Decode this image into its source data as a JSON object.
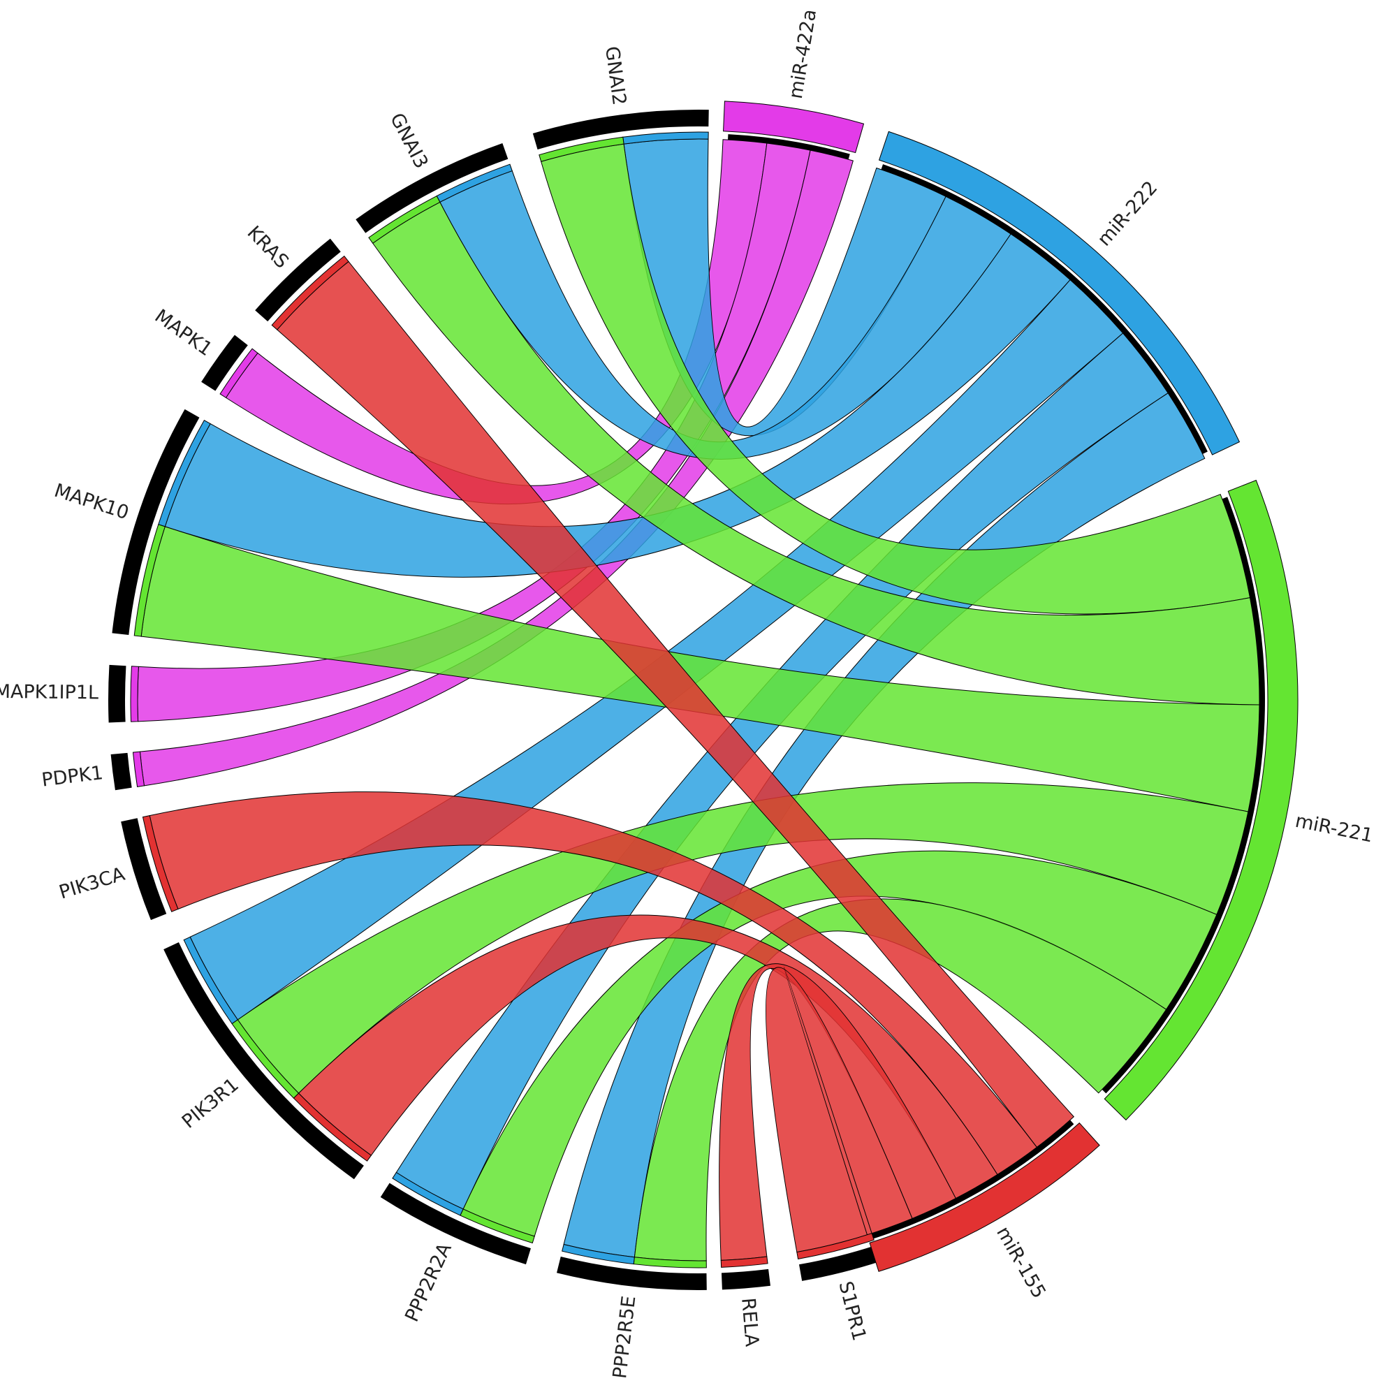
{
  "mirnas": [
    {
      "id": "miR-422a",
      "label": "miR-422a",
      "color": "#e33be8"
    },
    {
      "id": "miR-222",
      "label": "miR-222",
      "color": "#2ea2e2"
    },
    {
      "id": "miR-221",
      "label": "miR-221",
      "color": "#64e532"
    },
    {
      "id": "miR-155",
      "label": "miR-155",
      "color": "#e23232"
    }
  ],
  "genes": [
    {
      "id": "GNAI2",
      "label": "GNAI2"
    },
    {
      "id": "GNAI3",
      "label": "GNAI3"
    },
    {
      "id": "KRAS",
      "label": "KRAS"
    },
    {
      "id": "MAPK1",
      "label": "MAPK1"
    },
    {
      "id": "MAPK10",
      "label": "MAPK10"
    },
    {
      "id": "MAPK1IP1L",
      "label": "MAPK1IP1L"
    },
    {
      "id": "PDPK1",
      "label": "PDPK1"
    },
    {
      "id": "PIK3CA",
      "label": "PIK3CA"
    },
    {
      "id": "PIK3R1",
      "label": "PIK3R1"
    },
    {
      "id": "PPP2R2A",
      "label": "PPP2R2A"
    },
    {
      "id": "PPP2R5E",
      "label": "PPP2R5E"
    },
    {
      "id": "RELA",
      "label": "RELA"
    },
    {
      "id": "S1PR1",
      "label": "S1PR1"
    }
  ],
  "links": [
    {
      "mirna": "miR-422a",
      "gene": "MAPK1"
    },
    {
      "mirna": "miR-422a",
      "gene": "MAPK1IP1L"
    },
    {
      "mirna": "miR-422a",
      "gene": "PDPK1"
    },
    {
      "mirna": "miR-222",
      "gene": "GNAI2"
    },
    {
      "mirna": "miR-222",
      "gene": "GNAI3"
    },
    {
      "mirna": "miR-222",
      "gene": "MAPK10"
    },
    {
      "mirna": "miR-222",
      "gene": "PIK3R1"
    },
    {
      "mirna": "miR-222",
      "gene": "PPP2R2A"
    },
    {
      "mirna": "miR-222",
      "gene": "PPP2R5E"
    },
    {
      "mirna": "miR-221",
      "gene": "GNAI2"
    },
    {
      "mirna": "miR-221",
      "gene": "GNAI3"
    },
    {
      "mirna": "miR-221",
      "gene": "MAPK10"
    },
    {
      "mirna": "miR-221",
      "gene": "PIK3R1"
    },
    {
      "mirna": "miR-221",
      "gene": "PPP2R2A"
    },
    {
      "mirna": "miR-221",
      "gene": "PPP2R5E"
    },
    {
      "mirna": "miR-155",
      "gene": "KRAS"
    },
    {
      "mirna": "miR-155",
      "gene": "PIK3CA"
    },
    {
      "mirna": "miR-155",
      "gene": "PIK3R1"
    },
    {
      "mirna": "miR-155",
      "gene": "RELA"
    },
    {
      "mirna": "miR-155",
      "gene": "S1PR1"
    }
  ]
}
